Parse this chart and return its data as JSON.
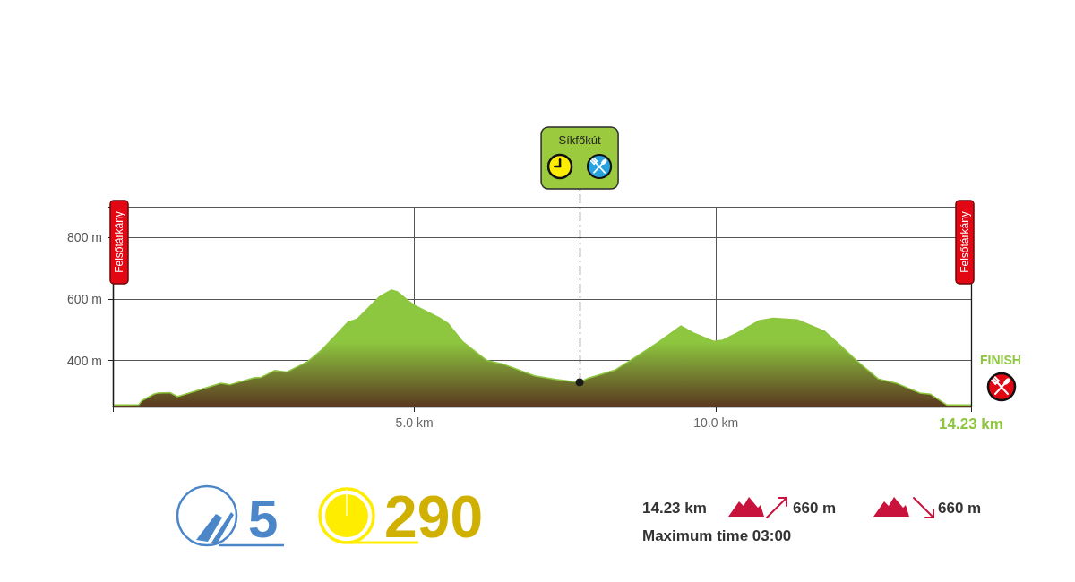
{
  "chart_data": {
    "type": "area",
    "x": [
      0,
      0.43,
      0.48,
      0.68,
      0.75,
      0.95,
      1.07,
      1.24,
      1.79,
      1.94,
      2.34,
      2.46,
      2.68,
      2.88,
      3.23,
      3.48,
      3.9,
      4.05,
      4.42,
      4.62,
      4.72,
      4.91,
      5.01,
      5.41,
      5.56,
      5.8,
      6.2,
      6.5,
      6.99,
      7.34,
      7.74,
      7.88,
      8.33,
      8.58,
      9.02,
      9.42,
      9.62,
      9.96,
      10.11,
      10.36,
      10.71,
      10.95,
      11.35,
      11.8,
      12.1,
      12.34,
      12.69,
      12.99,
      13.38,
      13.56,
      13.83,
      14.23
    ],
    "values": [
      255,
      256,
      269,
      290,
      294,
      295,
      282,
      292,
      326,
      321,
      343,
      345,
      367,
      362,
      396,
      437,
      525,
      534,
      607,
      629,
      623,
      592,
      578,
      539,
      520,
      461,
      400,
      386,
      350,
      338,
      329,
      342,
      369,
      400,
      456,
      512,
      490,
      462,
      466,
      490,
      529,
      537,
      532,
      495,
      442,
      398,
      340,
      326,
      294,
      290,
      255,
      255
    ],
    "color": "#8dc63f",
    "xlim": [
      0,
      14.23
    ],
    "xticks": [
      {
        "value": 0,
        "label": null
      },
      {
        "value": 5,
        "label": "5.0 km"
      },
      {
        "value": 10,
        "label": "10.0 km"
      },
      {
        "value": 14.23,
        "label": "14.23 km"
      }
    ],
    "ylim": [
      250,
      900
    ],
    "yticks": [
      {
        "value": 400,
        "label": "400 m"
      },
      {
        "value": 600,
        "label": "600 m"
      },
      {
        "value": 800,
        "label": "800 m"
      },
      {
        "value": 900,
        "label": null
      }
    ],
    "grid": true,
    "ref_lines": [
      {
        "axis": "x",
        "value": 0,
        "label": "Felsőtárkány"
      },
      {
        "axis": "x",
        "value": 7.74,
        "label": "Síkfőkút",
        "line_style": "dashed"
      },
      {
        "axis": "x",
        "value": 14.23,
        "label": "Felsőtárkány"
      }
    ],
    "annotations": [
      "FINISH",
      "5",
      "290",
      "14.23 km",
      "660 m",
      "660 m",
      "Maximum time 03:00"
    ]
  }
}
